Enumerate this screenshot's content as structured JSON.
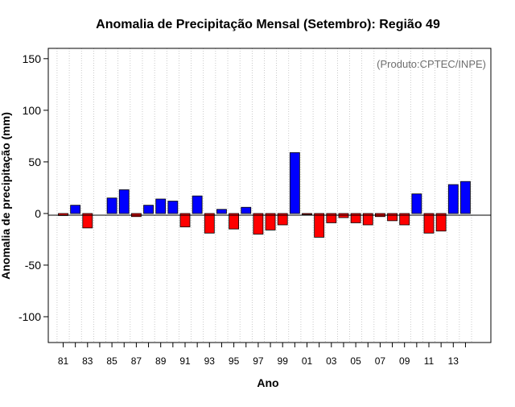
{
  "chart_data": {
    "type": "bar",
    "title": "Anomalia de Precipitação Mensal (Setembro): Região 49",
    "xlabel": "Ano",
    "ylabel": "Anomalia de precipitação (mm)",
    "credit": "(Produto:CPTEC/INPE)",
    "ylim": [
      -125,
      160
    ],
    "yticks": [
      -100,
      -50,
      0,
      50,
      100,
      150
    ],
    "xtick_labels": [
      "81",
      "83",
      "85",
      "87",
      "89",
      "91",
      "93",
      "95",
      "97",
      "99",
      "01",
      "03",
      "05",
      "07",
      "09",
      "11",
      "13"
    ],
    "grid": "vertical dotted",
    "positive_color": "#0000ff",
    "negative_color": "#ff0000",
    "years": [
      "1981",
      "1982",
      "1983",
      "1984",
      "1985",
      "1986",
      "1987",
      "1988",
      "1989",
      "1990",
      "1991",
      "1992",
      "1993",
      "1994",
      "1995",
      "1996",
      "1997",
      "1998",
      "1999",
      "2000",
      "2001",
      "2002",
      "2003",
      "2004",
      "2005",
      "2006",
      "2007",
      "2008",
      "2009",
      "2010",
      "2011",
      "2012",
      "2013",
      "2014"
    ],
    "values": [
      -2,
      8,
      -14,
      0,
      15,
      23,
      -3,
      8,
      14,
      12,
      -13,
      17,
      -19,
      4,
      -15,
      6,
      -20,
      -16,
      -11,
      59,
      -1,
      -23,
      -9,
      -4,
      -9,
      -11,
      -3,
      -7,
      -11,
      19,
      -19,
      -17,
      28,
      31
    ]
  }
}
